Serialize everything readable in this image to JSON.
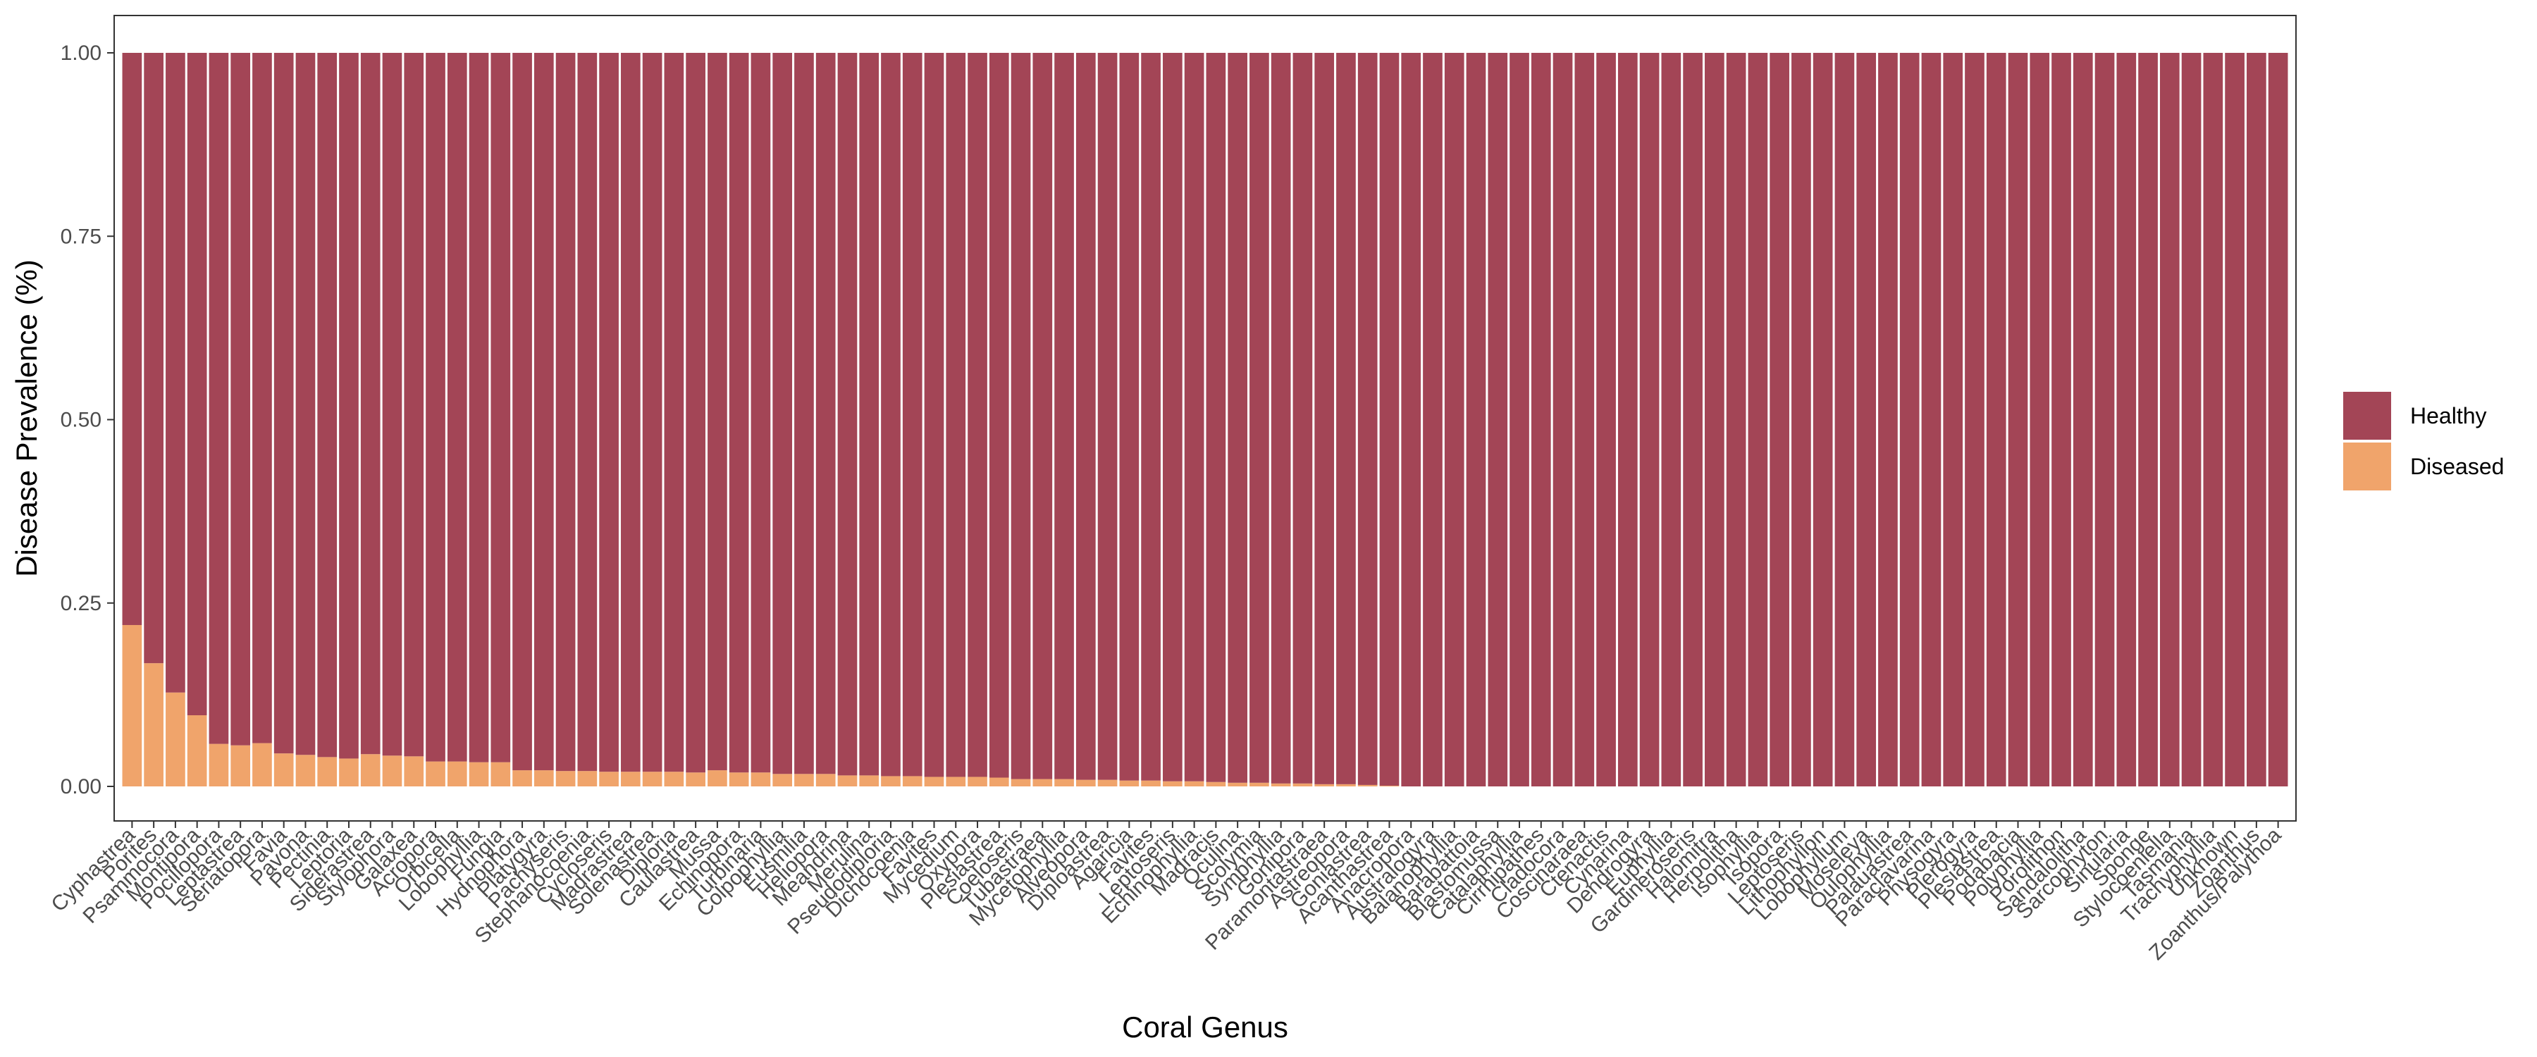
{
  "colors": {
    "healthy": "#A34556",
    "diseased": "#F0A46B"
  },
  "chart_data": {
    "type": "bar",
    "stacked": true,
    "xlabel": "Coral Genus",
    "ylabel": "Disease Prevalence (%)",
    "ylim": [
      0,
      1
    ],
    "yticks": [
      "0.00",
      "0.25",
      "0.50",
      "0.75",
      "1.00"
    ],
    "legend_position": "right",
    "grid": false,
    "categories": [
      "Cyphastrea",
      "Porites",
      "Psammocora",
      "Montipora",
      "Pocillopora",
      "Leptastrea",
      "Seriatopora",
      "Favia",
      "Pavona",
      "Pectinia",
      "Leptoria",
      "Siderastrea",
      "Stylophora",
      "Galaxea",
      "Acropora",
      "Orbicella",
      "Lobophyllia",
      "Fungia",
      "Hydnophora",
      "Platygyra",
      "Pachyseris",
      "Stephanocoenia",
      "Cycloseris",
      "Madrastrea",
      "Solenastrea",
      "Diploria",
      "Caulastrea",
      "Mussa",
      "Echinopora",
      "Turbinaria",
      "Colpophyllia",
      "Eusmilia",
      "Heliopora",
      "Meandrina",
      "Merulina",
      "Pseudodiploria",
      "Dichocoenia",
      "Favites",
      "Mycedium",
      "Oxypora",
      "Plesiastrea",
      "Coeloseris",
      "Tubastraea",
      "Mycetophyllia",
      "Alveopora",
      "Diploastrea",
      "Agaricia",
      "Favites",
      "Leptoseris",
      "Echinophyllia",
      "Madracis",
      "Oculina",
      "Scolymia",
      "Symphyllia",
      "Gonipora",
      "Paramontastraea",
      "Astreopora",
      "Goniastrea",
      "Acanthastrea",
      "Anacropora",
      "Australogyra",
      "Balanophyllia",
      "Barabattoia",
      "Blastomussa",
      "Catalaphyllia",
      "Cirrhipathes",
      "Cladocora",
      "Coscinaraea",
      "Ctenactis",
      "Cynarina",
      "Dendrogyra",
      "Euphyllia",
      "Gardineroseris",
      "Halomitra",
      "Herpolitha",
      "Isophyllia",
      "Isopora",
      "Leptoseris",
      "Lithophyllon",
      "Lobophyllum",
      "Moseleya",
      "Oulophyllia",
      "Palauastrea",
      "Paraclavarina",
      "Physogyra",
      "Plerogyra",
      "Plesiastrea",
      "Podabacia",
      "Polyphyllia",
      "Porolithon",
      "Sandalolitha",
      "Sarcophyton",
      "Sinularia",
      "Sponge",
      "Stylocoeniella",
      "Tasmania",
      "Trachyphyllia",
      "Unknown",
      "Zoanthus",
      "Zoanthus/Palythoa"
    ],
    "series": [
      {
        "name": "Healthy",
        "values": [
          0.78,
          0.832,
          0.872,
          0.903,
          0.942,
          0.944,
          0.941,
          0.955,
          0.957,
          0.96,
          0.962,
          0.956,
          0.958,
          0.959,
          0.966,
          0.966,
          0.967,
          0.967,
          0.978,
          0.978,
          0.979,
          0.979,
          0.98,
          0.98,
          0.98,
          0.98,
          0.981,
          0.978,
          0.981,
          0.981,
          0.983,
          0.983,
          0.983,
          0.985,
          0.985,
          0.986,
          0.986,
          0.987,
          0.987,
          0.987,
          0.988,
          0.99,
          0.99,
          0.99,
          0.991,
          0.991,
          0.992,
          0.992,
          0.993,
          0.993,
          0.994,
          0.995,
          0.995,
          0.996,
          0.996,
          0.997,
          0.997,
          0.998,
          0.999,
          1,
          1,
          1,
          1,
          1,
          1,
          1,
          1,
          1,
          1,
          1,
          1,
          1,
          1,
          1,
          1,
          1,
          1,
          1,
          1,
          1,
          1,
          1,
          1,
          1,
          1,
          1,
          1,
          1,
          1,
          1,
          1,
          1,
          1,
          1,
          1,
          1,
          1,
          1,
          1,
          1
        ]
      },
      {
        "name": "Diseased",
        "values": [
          0.22,
          0.168,
          0.128,
          0.097,
          0.058,
          0.056,
          0.059,
          0.045,
          0.043,
          0.04,
          0.038,
          0.044,
          0.042,
          0.041,
          0.034,
          0.034,
          0.033,
          0.033,
          0.022,
          0.022,
          0.021,
          0.021,
          0.02,
          0.02,
          0.02,
          0.02,
          0.019,
          0.022,
          0.019,
          0.019,
          0.017,
          0.017,
          0.017,
          0.015,
          0.015,
          0.014,
          0.014,
          0.013,
          0.013,
          0.013,
          0.012,
          0.01,
          0.01,
          0.01,
          0.009,
          0.009,
          0.008,
          0.008,
          0.007,
          0.007,
          0.006,
          0.005,
          0.005,
          0.004,
          0.004,
          0.003,
          0.003,
          0.002,
          0.001,
          0,
          0,
          0,
          0,
          0,
          0,
          0,
          0,
          0,
          0,
          0,
          0,
          0,
          0,
          0,
          0,
          0,
          0,
          0,
          0,
          0,
          0,
          0,
          0,
          0,
          0,
          0,
          0,
          0,
          0,
          0,
          0,
          0,
          0,
          0,
          0,
          0,
          0,
          0,
          0,
          0
        ]
      }
    ]
  }
}
